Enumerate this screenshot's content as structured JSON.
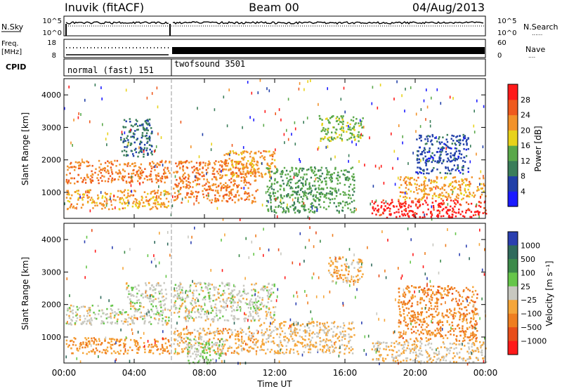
{
  "header": {
    "radar": "Inuvik (fitACF)",
    "beam": "Beam 00",
    "date": "04/Aug/2013"
  },
  "noise_panel": {
    "left_label": "N.Sky",
    "left_ticks": [
      "10^5",
      "10^0"
    ],
    "right_label": "N.Search",
    "right_ticks": [
      "10^5",
      "10^0"
    ]
  },
  "freq_panel": {
    "left_label_1": "Freq.",
    "left_label_2": "[MHz]",
    "left_ticks": [
      "18",
      "8"
    ],
    "right_label": "Nave",
    "right_ticks": [
      "60",
      "0"
    ]
  },
  "cpid_panel": {
    "label": "CPID",
    "modes": [
      {
        "text": "normal (fast) 151",
        "start": 0,
        "end": 6.1
      },
      {
        "text": "twofsound 3501",
        "start": 6.1,
        "end": 24
      }
    ]
  },
  "power_panel": {
    "ylabel": "Slant Range [km]",
    "yticks": [
      "1000",
      "2000",
      "3000",
      "4000"
    ],
    "colorbar_title": "Power [dB]",
    "colorbar_ticks": [
      "4",
      "8",
      "12",
      "16",
      "20",
      "24",
      "28"
    ],
    "colorbar_colors": [
      "#1a1aff",
      "#203fa8",
      "#3a7d5a",
      "#5aa84a",
      "#e8d21a",
      "#f2922a",
      "#ef5a1e",
      "#ff1a1a"
    ]
  },
  "velocity_panel": {
    "ylabel": "Slant Range [km]",
    "yticks": [
      "1000",
      "2000",
      "3000",
      "4000"
    ],
    "colorbar_title": "Velocity [m s⁻¹]",
    "colorbar_ticks": [
      "1000",
      "500",
      "100",
      "25",
      "−25",
      "−100",
      "−500",
      "−1000"
    ],
    "colorbar_colors": [
      "#2a3fb0",
      "#2f6a5c",
      "#3c8a4a",
      "#66c64a",
      "#c8c8c0",
      "#f5a63a",
      "#ef7e20",
      "#e84e1a",
      "#ff1a1a"
    ]
  },
  "xaxis": {
    "label": "Time UT",
    "ticks": [
      "00:00",
      "04:00",
      "08:00",
      "12:00",
      "16:00",
      "20:00",
      "00:00"
    ]
  },
  "chart_data": {
    "type": "heatmap",
    "title": "Inuvik (fitACF)  Beam 00  04/Aug/2013",
    "xlabel": "Time UT",
    "ylabel": "Slant Range [km]",
    "xlim": [
      0,
      24
    ],
    "ylim": [
      200,
      4500
    ],
    "series": [
      {
        "name": "Power [dB]",
        "range": [
          0,
          30
        ],
        "regions": [
          {
            "t0": 0.1,
            "t1": 6.0,
            "r0": 1300,
            "r1": 2000,
            "level": 22
          },
          {
            "t0": 0.1,
            "t1": 6.0,
            "r0": 500,
            "r1": 1100,
            "level": 20
          },
          {
            "t0": 3.2,
            "t1": 5.0,
            "r0": 2100,
            "r1": 3300,
            "level": 8
          },
          {
            "t0": 6.2,
            "t1": 11.0,
            "r0": 700,
            "r1": 2000,
            "level": 22
          },
          {
            "t0": 9.0,
            "t1": 12.0,
            "r0": 1500,
            "r1": 2300,
            "level": 20
          },
          {
            "t0": 11.5,
            "t1": 16.5,
            "r0": 400,
            "r1": 1800,
            "level": 12
          },
          {
            "t0": 14.5,
            "t1": 17.0,
            "r0": 2600,
            "r1": 3400,
            "level": 14
          },
          {
            "t0": 17.5,
            "t1": 24.0,
            "r0": 250,
            "r1": 800,
            "level": 28
          },
          {
            "t0": 19.0,
            "t1": 24.0,
            "r0": 800,
            "r1": 1500,
            "level": 20
          },
          {
            "t0": 20.0,
            "t1": 23.0,
            "r0": 1600,
            "r1": 2800,
            "level": 6
          }
        ]
      },
      {
        "name": "Velocity [m s⁻¹]",
        "range": [
          -1000,
          1000
        ],
        "regions": [
          {
            "t0": 0.1,
            "t1": 6.0,
            "r0": 1400,
            "r1": 2000,
            "level": 0
          },
          {
            "t0": 0.1,
            "t1": 6.0,
            "r0": 500,
            "r1": 1000,
            "level": -300
          },
          {
            "t0": 3.5,
            "t1": 5.8,
            "r0": 2000,
            "r1": 2700,
            "level": 0
          },
          {
            "t0": 6.2,
            "t1": 12.0,
            "r0": 1500,
            "r1": 2700,
            "level": 0
          },
          {
            "t0": 6.2,
            "t1": 11.0,
            "r0": 500,
            "r1": 1300,
            "level": -200
          },
          {
            "t0": 7.0,
            "t1": 9.0,
            "r0": 200,
            "r1": 1000,
            "level": 100
          },
          {
            "t0": 11.0,
            "t1": 16.5,
            "r0": 500,
            "r1": 1500,
            "level": -150
          },
          {
            "t0": 15.0,
            "t1": 17.0,
            "r0": 2700,
            "r1": 3500,
            "level": -200
          },
          {
            "t0": 17.5,
            "t1": 24.0,
            "r0": 250,
            "r1": 900,
            "level": -100
          },
          {
            "t0": 19.0,
            "t1": 23.5,
            "r0": 900,
            "r1": 2600,
            "level": -400
          }
        ]
      }
    ],
    "grid": false
  }
}
